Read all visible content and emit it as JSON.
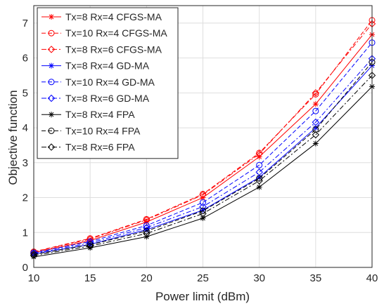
{
  "chart_data": {
    "type": "line",
    "title": "",
    "xlabel": "Power limit (dBm)",
    "ylabel": "Objective function",
    "xlim": [
      10,
      40
    ],
    "ylim": [
      0,
      7.5
    ],
    "x": [
      10,
      15,
      20,
      25,
      30,
      35,
      40
    ],
    "xticks": [
      "10",
      "15",
      "20",
      "25",
      "30",
      "35",
      "40"
    ],
    "yticks": [
      "0",
      "1",
      "2",
      "3",
      "4",
      "5",
      "6",
      "7"
    ],
    "grid": true,
    "legend_position": "top-left",
    "series": [
      {
        "name": "Tx=8 Rx=4 CFGS-MA",
        "color": "#ff0000",
        "dash": "solid",
        "marker": "star",
        "values": [
          0.42,
          0.77,
          1.3,
          2.0,
          3.17,
          4.68,
          6.67
        ]
      },
      {
        "name": "Tx=10 Rx=4 CFGS-MA",
        "color": "#ff0000",
        "dash": "dashed",
        "marker": "circle",
        "values": [
          0.45,
          0.83,
          1.38,
          2.1,
          3.28,
          4.96,
          7.08
        ]
      },
      {
        "name": "Tx=8 Rx=6 CFGS-MA",
        "color": "#ff0000",
        "dash": "dashdot",
        "marker": "diamond",
        "values": [
          0.44,
          0.81,
          1.36,
          2.08,
          3.25,
          5.0,
          6.98
        ]
      },
      {
        "name": "Tx=8 Rx=4 GD-MA",
        "color": "#0000ff",
        "dash": "solid",
        "marker": "star",
        "values": [
          0.38,
          0.66,
          1.08,
          1.64,
          2.58,
          4.0,
          5.78
        ]
      },
      {
        "name": "Tx=10 Rx=4 GD-MA",
        "color": "#0000ff",
        "dash": "dashed",
        "marker": "circle",
        "values": [
          0.42,
          0.74,
          1.2,
          1.86,
          2.93,
          4.48,
          6.44
        ]
      },
      {
        "name": "Tx=8 Rx=6 GD-MA",
        "color": "#0000ff",
        "dash": "dashdot",
        "marker": "diamond",
        "values": [
          0.4,
          0.7,
          1.14,
          1.74,
          2.73,
          4.16,
          5.98
        ]
      },
      {
        "name": "Tx=8 Rx=4 FPA",
        "color": "#000000",
        "dash": "solid",
        "marker": "star",
        "values": [
          0.3,
          0.56,
          0.88,
          1.41,
          2.3,
          3.55,
          5.18
        ]
      },
      {
        "name": "Tx=10 Rx=4 FPA",
        "color": "#000000",
        "dash": "dashed",
        "marker": "circle",
        "values": [
          0.37,
          0.65,
          1.04,
          1.62,
          2.55,
          3.95,
          5.88
        ]
      },
      {
        "name": "Tx=8 Rx=6 FPA",
        "color": "#000000",
        "dash": "dashdot",
        "marker": "diamond",
        "values": [
          0.34,
          0.61,
          0.97,
          1.54,
          2.48,
          3.8,
          5.5
        ]
      }
    ]
  }
}
